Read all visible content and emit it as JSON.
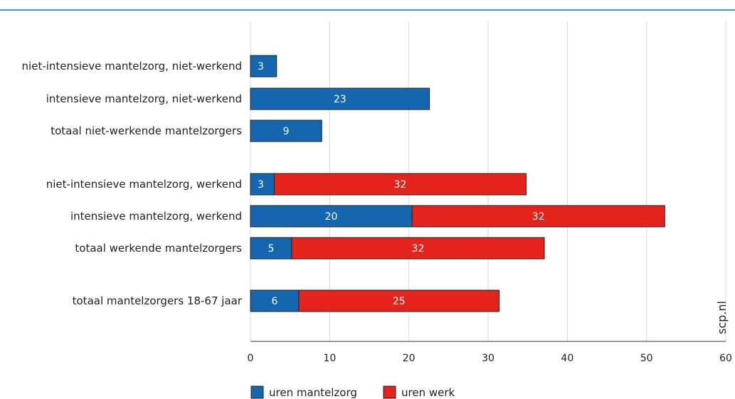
{
  "colors": {
    "mantelzorg": "#1466b0",
    "werk": "#e3231c",
    "top_rule": "#3e9ad6",
    "grid": "#d9d9d9"
  },
  "watermark": "scp.nl",
  "chart_data": {
    "type": "bar",
    "orientation": "horizontal",
    "stacked": true,
    "categories": [
      "niet-intensieve mantelzorg, niet-werkend",
      "intensieve mantelzorg, niet-werkend",
      "totaal niet-werkende mantelzorgers",
      "niet-intensieve mantelzorg, werkend",
      "intensieve mantelzorg, werkend",
      "totaal werkende mantelzorgers",
      "totaal mantelzorgers 18-67 jaar"
    ],
    "series": [
      {
        "name": "uren mantelzorg",
        "values": [
          3.3,
          22.6,
          9.0,
          3.0,
          20.4,
          5.2,
          6.1
        ],
        "labels": [
          "3",
          "23",
          "9",
          "3",
          "20",
          "5",
          "6"
        ]
      },
      {
        "name": "uren werk",
        "values": [
          0,
          0,
          0,
          31.8,
          31.9,
          31.9,
          25.3
        ],
        "labels": [
          "",
          "",
          "",
          "32",
          "32",
          "32",
          "25"
        ]
      }
    ],
    "xlim": [
      0,
      60
    ],
    "xticks": [
      "0",
      "10",
      "20",
      "30",
      "40",
      "50",
      "60"
    ],
    "grid": true,
    "legend_position": "bottom"
  }
}
